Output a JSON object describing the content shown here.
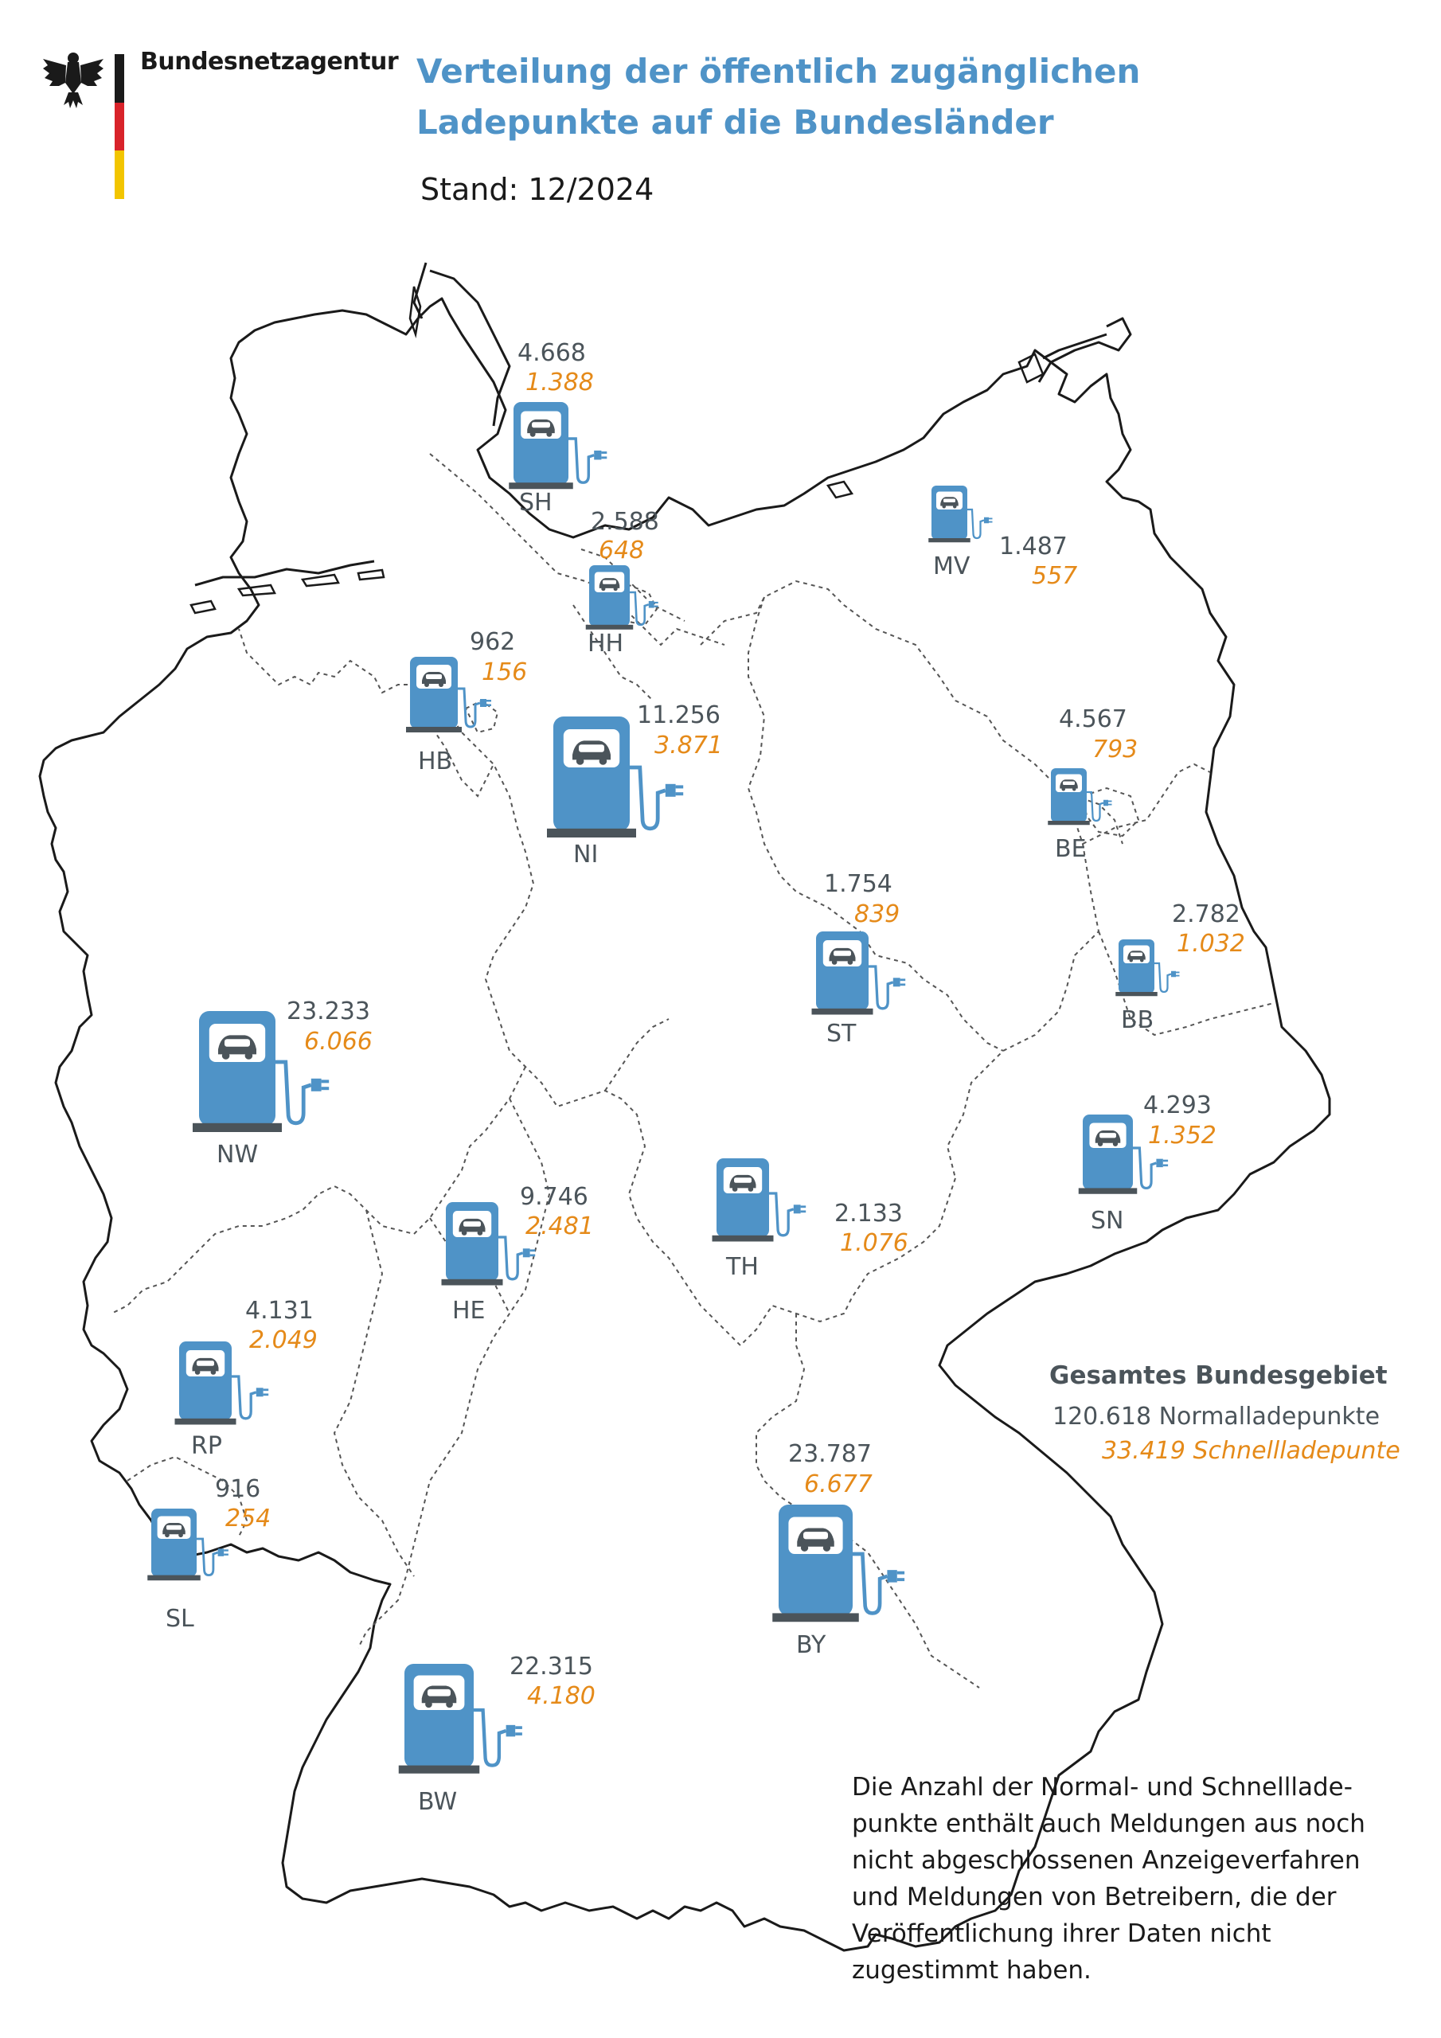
{
  "header": {
    "organization": "Bundesnetzagentur",
    "title_line1": "Verteilung der öffentlich zugänglichen",
    "title_line2": "Ladepunkte auf die Bundesländer",
    "stand": "Stand: 12/2024"
  },
  "colors": {
    "accent": "#4f93c7",
    "normal_text": "#4b545a",
    "fast_text": "#e58a19",
    "flag_black": "#1a1a1a",
    "flag_red": "#d8232a",
    "flag_gold": "#f2c500"
  },
  "states": [
    {
      "abbr": "SH",
      "normal": "4.668",
      "fast": "1.388"
    },
    {
      "abbr": "HH",
      "normal": "2.588",
      "fast": "648"
    },
    {
      "abbr": "MV",
      "normal": "1.487",
      "fast": "557"
    },
    {
      "abbr": "HB",
      "normal": "962",
      "fast": "156"
    },
    {
      "abbr": "NI",
      "normal": "11.256",
      "fast": "3.871"
    },
    {
      "abbr": "BE",
      "normal": "4.567",
      "fast": "793"
    },
    {
      "abbr": "ST",
      "normal": "1.754",
      "fast": "839"
    },
    {
      "abbr": "BB",
      "normal": "2.782",
      "fast": "1.032"
    },
    {
      "abbr": "NW",
      "normal": "23.233",
      "fast": "6.066"
    },
    {
      "abbr": "SN",
      "normal": "4.293",
      "fast": "1.352"
    },
    {
      "abbr": "HE",
      "normal": "9.746",
      "fast": "2.481"
    },
    {
      "abbr": "TH",
      "normal": "2.133",
      "fast": "1.076"
    },
    {
      "abbr": "RP",
      "normal": "4.131",
      "fast": "2.049"
    },
    {
      "abbr": "SL",
      "normal": "916",
      "fast": "254"
    },
    {
      "abbr": "BY",
      "normal": "23.787",
      "fast": "6.677"
    },
    {
      "abbr": "BW",
      "normal": "22.315",
      "fast": "4.180"
    }
  ],
  "total": {
    "heading": "Gesamtes Bundesgebiet",
    "normal": "120.618 Normalladepunkte",
    "fast": "33.419 Schnellladepunte"
  },
  "note": {
    "lines": [
      "Die Anzahl der Normal- und Schnelllade-",
      "punkte enthält auch Meldungen aus noch",
      "nicht abgeschlossenen Anzeigeverfahren",
      "und Meldungen von Betreibern, die der",
      "Veröffentlichung ihrer Daten nicht",
      "zugestimmt haben."
    ]
  },
  "icons": {
    "logo": "federal-eagle-icon",
    "station": "ev-charging-station-icon"
  }
}
